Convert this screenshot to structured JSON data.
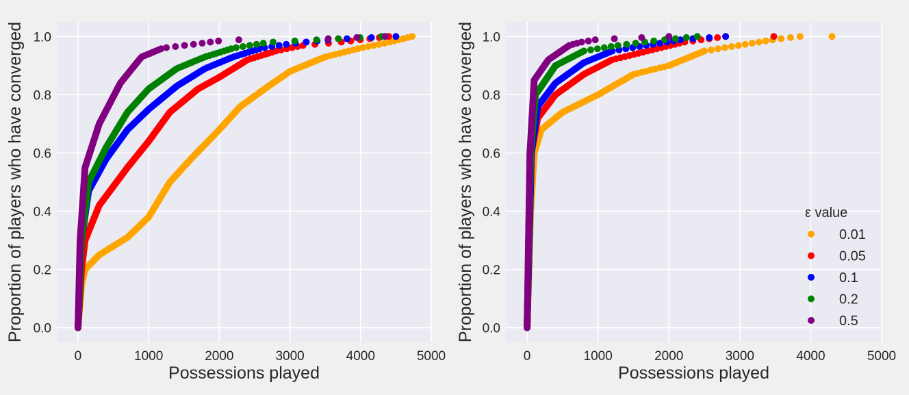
{
  "chart_data": [
    {
      "type": "scatter",
      "xlabel": "Possessions played",
      "ylabel": "Proportion of players who have converged",
      "xlim": [
        -300,
        5000
      ],
      "ylim": [
        -0.05,
        1.05
      ],
      "xticks": [
        "0",
        "1000",
        "2000",
        "3000",
        "4000",
        "5000"
      ],
      "yticks": [
        "0.0",
        "0.2",
        "0.4",
        "0.6",
        "0.8",
        "1.0"
      ],
      "grid": true,
      "series": [
        {
          "name": "0.01",
          "color": "#FFA500",
          "curve": [
            [
              0,
              0
            ],
            [
              50,
              0.15
            ],
            [
              100,
              0.2
            ],
            [
              300,
              0.25
            ],
            [
              700,
              0.31
            ],
            [
              1000,
              0.38
            ],
            [
              1300,
              0.5
            ],
            [
              1600,
              0.58
            ],
            [
              2000,
              0.68
            ],
            [
              2300,
              0.76
            ],
            [
              2700,
              0.83
            ],
            [
              3000,
              0.88
            ],
            [
              3500,
              0.93
            ],
            [
              4000,
              0.96
            ],
            [
              4400,
              0.98
            ],
            [
              4730,
              1.0
            ]
          ]
        },
        {
          "name": "0.05",
          "color": "#FF0000",
          "curve": [
            [
              0,
              0
            ],
            [
              50,
              0.2
            ],
            [
              100,
              0.3
            ],
            [
              300,
              0.42
            ],
            [
              700,
              0.55
            ],
            [
              1000,
              0.64
            ],
            [
              1300,
              0.74
            ],
            [
              1700,
              0.82
            ],
            [
              2000,
              0.86
            ],
            [
              2400,
              0.92
            ],
            [
              2800,
              0.95
            ],
            [
              3200,
              0.97
            ],
            [
              3700,
              0.98
            ],
            [
              4400,
              1.0
            ]
          ]
        },
        {
          "name": "0.1",
          "color": "#0000FF",
          "curve": [
            [
              0,
              0
            ],
            [
              50,
              0.3
            ],
            [
              150,
              0.47
            ],
            [
              400,
              0.58
            ],
            [
              700,
              0.68
            ],
            [
              1000,
              0.75
            ],
            [
              1400,
              0.83
            ],
            [
              1800,
              0.89
            ],
            [
              2200,
              0.93
            ],
            [
              2600,
              0.96
            ],
            [
              3000,
              0.975
            ],
            [
              3600,
              0.99
            ],
            [
              4500,
              1.0
            ]
          ]
        },
        {
          "name": "0.2",
          "color": "#008000",
          "curve": [
            [
              0,
              0
            ],
            [
              50,
              0.3
            ],
            [
              150,
              0.5
            ],
            [
              400,
              0.62
            ],
            [
              700,
              0.74
            ],
            [
              1000,
              0.82
            ],
            [
              1400,
              0.89
            ],
            [
              1800,
              0.93
            ],
            [
              2200,
              0.96
            ],
            [
              2700,
              0.98
            ],
            [
              3500,
              0.99
            ],
            [
              4300,
              1.0
            ]
          ]
        },
        {
          "name": "0.5",
          "color": "#800080",
          "curve": [
            [
              0,
              0
            ],
            [
              30,
              0.3
            ],
            [
              100,
              0.55
            ],
            [
              300,
              0.7
            ],
            [
              600,
              0.84
            ],
            [
              900,
              0.93
            ],
            [
              1200,
              0.96
            ],
            [
              1700,
              0.975
            ],
            [
              2000,
              0.985
            ],
            [
              2400,
              0.99
            ],
            [
              3300,
              0.99
            ],
            [
              4350,
              1.0
            ]
          ]
        }
      ]
    },
    {
      "type": "scatter",
      "xlabel": "Possessions played",
      "ylabel": "Proportion of players who have converged",
      "xlim": [
        -300,
        5000
      ],
      "ylim": [
        -0.05,
        1.05
      ],
      "xticks": [
        "0",
        "1000",
        "2000",
        "3000",
        "4000",
        "5000"
      ],
      "yticks": [
        "0.0",
        "0.2",
        "0.4",
        "0.6",
        "0.8",
        "1.0"
      ],
      "grid": true,
      "legend": {
        "title": "ε value",
        "placement": "lower-right",
        "entries": [
          "0.01",
          "0.05",
          "0.1",
          "0.2",
          "0.5"
        ]
      },
      "series": [
        {
          "name": "0.01",
          "color": "#FFA500",
          "curve": [
            [
              0,
              0
            ],
            [
              50,
              0.4
            ],
            [
              100,
              0.6
            ],
            [
              200,
              0.68
            ],
            [
              500,
              0.74
            ],
            [
              1000,
              0.8
            ],
            [
              1500,
              0.87
            ],
            [
              2000,
              0.9
            ],
            [
              2500,
              0.95
            ],
            [
              3000,
              0.97
            ],
            [
              3500,
              0.99
            ],
            [
              3850,
              1.0
            ],
            [
              4300,
              1.0
            ]
          ]
        },
        {
          "name": "0.05",
          "color": "#FF0000",
          "curve": [
            [
              0,
              0
            ],
            [
              60,
              0.6
            ],
            [
              150,
              0.72
            ],
            [
              400,
              0.8
            ],
            [
              800,
              0.87
            ],
            [
              1200,
              0.92
            ],
            [
              1700,
              0.95
            ],
            [
              2200,
              0.98
            ],
            [
              2800,
              1.0
            ],
            [
              3480,
              1.0
            ]
          ]
        },
        {
          "name": "0.1",
          "color": "#0000FF",
          "curve": [
            [
              0,
              0
            ],
            [
              60,
              0.6
            ],
            [
              150,
              0.76
            ],
            [
              400,
              0.84
            ],
            [
              800,
              0.91
            ],
            [
              1200,
              0.95
            ],
            [
              1700,
              0.97
            ],
            [
              2200,
              0.99
            ],
            [
              2800,
              1.0
            ]
          ]
        },
        {
          "name": "0.2",
          "color": "#008000",
          "curve": [
            [
              0,
              0
            ],
            [
              50,
              0.6
            ],
            [
              120,
              0.8
            ],
            [
              400,
              0.9
            ],
            [
              800,
              0.95
            ],
            [
              1300,
              0.97
            ],
            [
              1800,
              0.985
            ],
            [
              2400,
              1.0
            ]
          ]
        },
        {
          "name": "0.5",
          "color": "#800080",
          "curve": [
            [
              0,
              0
            ],
            [
              40,
              0.6
            ],
            [
              100,
              0.85
            ],
            [
              300,
              0.92
            ],
            [
              600,
              0.97
            ],
            [
              750,
              0.98
            ],
            [
              1000,
              0.99
            ],
            [
              2000,
              1.0
            ]
          ]
        }
      ]
    }
  ]
}
